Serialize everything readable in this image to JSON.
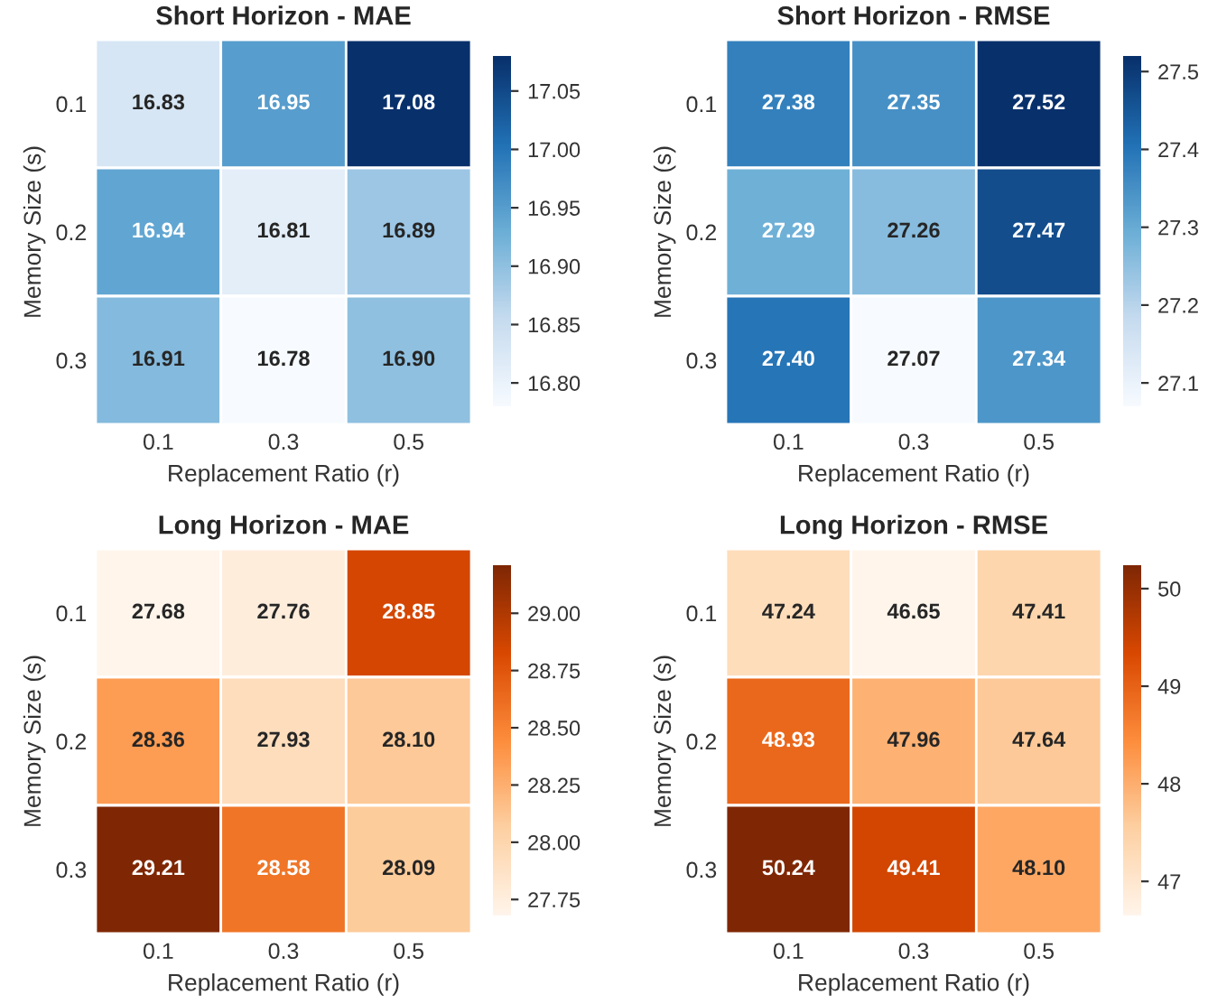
{
  "chart_data": [
    {
      "type": "heatmap",
      "title": "Short Horizon - MAE",
      "xlabel": "Replacement Ratio (r)",
      "ylabel": "Memory Size (s)",
      "categories": [
        "0.1",
        "0.3",
        "0.5"
      ],
      "y_categories": [
        "0.1",
        "0.2",
        "0.3"
      ],
      "cells": [
        [
          16.83,
          16.95,
          17.08
        ],
        [
          16.94,
          16.81,
          16.89
        ],
        [
          16.91,
          16.78,
          16.9
        ]
      ],
      "cell_labels": [
        [
          "16.83",
          "16.95",
          "17.08"
        ],
        [
          "16.94",
          "16.81",
          "16.89"
        ],
        [
          "16.91",
          "16.78",
          "16.90"
        ]
      ],
      "colors": [
        "#f7fbff",
        "#c6dbef",
        "#6baed6",
        "#2171b5",
        "#08306b"
      ],
      "clim": [
        16.78,
        17.08
      ],
      "cticks": [
        {
          "value": 16.8,
          "label": "16.80"
        },
        {
          "value": 16.85,
          "label": "16.85"
        },
        {
          "value": 16.9,
          "label": "16.90"
        },
        {
          "value": 16.95,
          "label": "16.95"
        },
        {
          "value": 17.0,
          "label": "17.00"
        },
        {
          "value": 17.05,
          "label": "17.05"
        }
      ]
    },
    {
      "type": "heatmap",
      "title": "Short Horizon - RMSE",
      "xlabel": "Replacement Ratio (r)",
      "ylabel": "Memory Size (s)",
      "categories": [
        "0.1",
        "0.3",
        "0.5"
      ],
      "y_categories": [
        "0.1",
        "0.2",
        "0.3"
      ],
      "cells": [
        [
          27.38,
          27.35,
          27.52
        ],
        [
          27.29,
          27.26,
          27.47
        ],
        [
          27.4,
          27.07,
          27.34
        ]
      ],
      "cell_labels": [
        [
          "27.38",
          "27.35",
          "27.52"
        ],
        [
          "27.29",
          "27.26",
          "27.47"
        ],
        [
          "27.40",
          "27.07",
          "27.34"
        ]
      ],
      "colors": [
        "#f7fbff",
        "#c6dbef",
        "#6baed6",
        "#2171b5",
        "#08306b"
      ],
      "clim": [
        27.07,
        27.52
      ],
      "cticks": [
        27.1,
        27.2,
        27.3,
        27.4,
        27.5
      ]
    },
    {
      "type": "heatmap",
      "title": "Long Horizon - MAE",
      "xlabel": "Replacement Ratio (r)",
      "ylabel": "Memory Size (s)",
      "categories": [
        "0.1",
        "0.3",
        "0.5"
      ],
      "y_categories": [
        "0.1",
        "0.2",
        "0.3"
      ],
      "cells": [
        [
          27.68,
          27.76,
          28.85
        ],
        [
          28.36,
          27.93,
          28.1
        ],
        [
          29.21,
          28.58,
          28.09
        ]
      ],
      "cell_labels": [
        [
          "27.68",
          "27.76",
          "28.85"
        ],
        [
          "28.36",
          "27.93",
          "28.10"
        ],
        [
          "29.21",
          "28.58",
          "28.09"
        ]
      ],
      "colors": [
        "#fff5eb",
        "#fdd0a2",
        "#fd8d3c",
        "#d94801",
        "#7f2704"
      ],
      "clim": [
        27.68,
        29.21
      ],
      "cticks": [
        {
          "value": 27.75,
          "label": "27.75"
        },
        {
          "value": 28.0,
          "label": "28.00"
        },
        {
          "value": 28.25,
          "label": "28.25"
        },
        {
          "value": 28.5,
          "label": "28.50"
        },
        {
          "value": 28.75,
          "label": "28.75"
        },
        {
          "value": 29.0,
          "label": "29.00"
        }
      ]
    },
    {
      "type": "heatmap",
      "title": "Long Horizon - RMSE",
      "xlabel": "Replacement Ratio (r)",
      "ylabel": "Memory Size (s)",
      "categories": [
        "0.1",
        "0.3",
        "0.5"
      ],
      "y_categories": [
        "0.1",
        "0.2",
        "0.3"
      ],
      "cells": [
        [
          47.24,
          46.65,
          47.41
        ],
        [
          48.93,
          47.96,
          47.64
        ],
        [
          50.24,
          49.41,
          48.1
        ]
      ],
      "cell_labels": [
        [
          "47.24",
          "46.65",
          "47.41"
        ],
        [
          "48.93",
          "47.96",
          "47.64"
        ],
        [
          "50.24",
          "49.41",
          "48.10"
        ]
      ],
      "colors": [
        "#fff5eb",
        "#fdd0a2",
        "#fd8d3c",
        "#d94801",
        "#7f2704"
      ],
      "clim": [
        46.65,
        50.24
      ],
      "cticks": [
        47,
        48,
        49,
        50
      ]
    }
  ]
}
